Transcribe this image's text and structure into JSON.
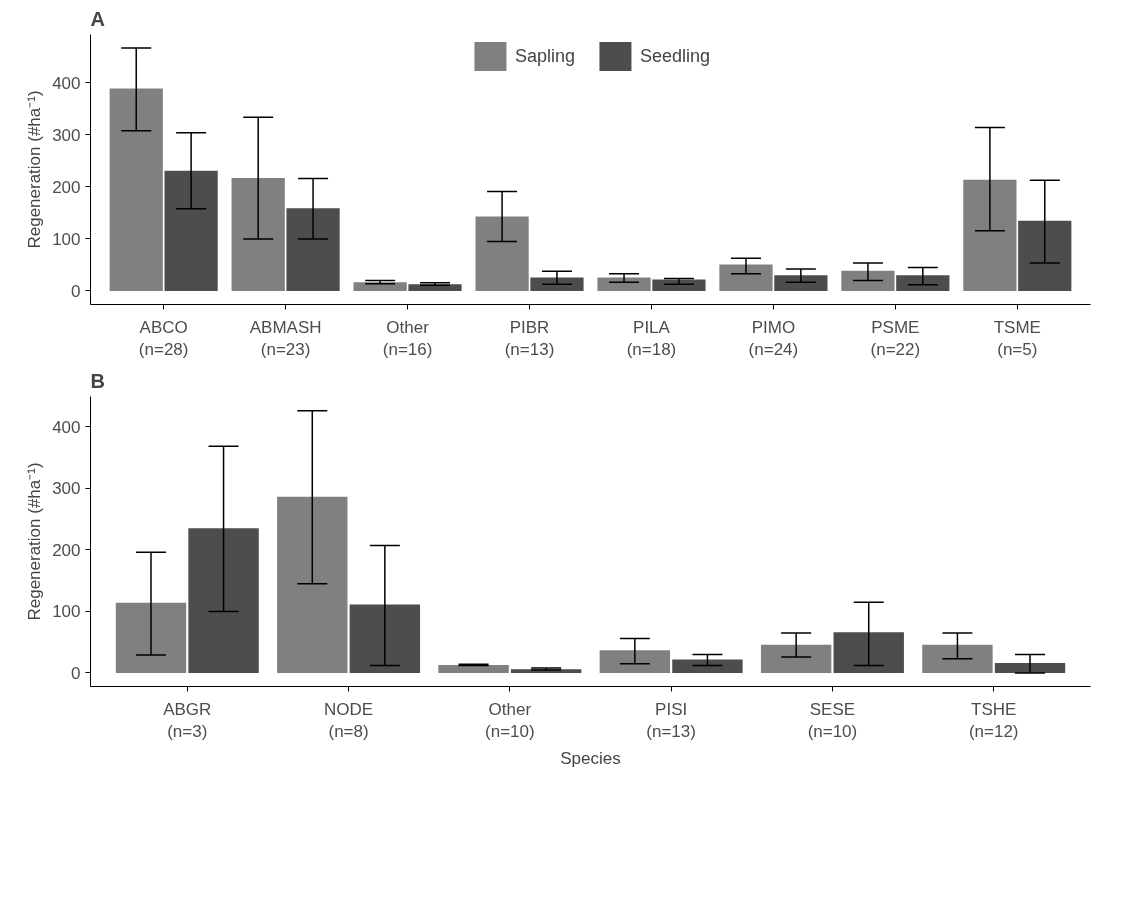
{
  "chart_data": [
    {
      "type": "bar",
      "title": "A",
      "ylabel": "Regeneration (#ha⁻¹)",
      "legend": "top",
      "grid": false,
      "categories": [
        "ABCO\n(n=28)",
        "ABMASH\n(n=23)",
        "Other\n(n=16)",
        "PIBR\n(n=13)",
        "PILA\n(n=18)",
        "PIMO\n(n=24)",
        "PSME\n(n=22)",
        "TSME\n(n=5)"
      ],
      "ylim": [
        -26,
        493
      ],
      "yticks": [
        0,
        100,
        200,
        300,
        400
      ],
      "series": [
        {
          "name": "Sapling",
          "color": "#808080",
          "values": [
            389,
            217,
            17,
            143,
            26,
            51,
            39,
            214
          ],
          "errors": [
            [
              308,
              467
            ],
            [
              100,
              334
            ],
            [
              14,
              20
            ],
            [
              95,
              191
            ],
            [
              17,
              33
            ],
            [
              33,
              63
            ],
            [
              20,
              54
            ],
            [
              116,
              314
            ]
          ]
        },
        {
          "name": "Seedling",
          "color": "#4d4d4d",
          "values": [
            231,
            159,
            13,
            26,
            22,
            30,
            30,
            135
          ],
          "errors": [
            [
              158,
              304
            ],
            [
              100,
              216
            ],
            [
              11,
              16
            ],
            [
              13,
              38
            ],
            [
              13,
              24
            ],
            [
              17,
              42
            ],
            [
              12,
              45
            ],
            [
              54,
              213
            ]
          ]
        }
      ]
    },
    {
      "type": "bar",
      "title": "B",
      "ylabel": "Regeneration (#ha⁻¹)",
      "xlabel": "Species",
      "grid": false,
      "categories": [
        "ABGR\n(n=3)",
        "NODE\n(n=8)",
        "Other\n(n=10)",
        "PISI\n(n=13)",
        "SESE\n(n=10)",
        "TSHE\n(n=12)"
      ],
      "ylim": [
        -22,
        449
      ],
      "yticks": [
        0,
        100,
        200,
        300,
        400
      ],
      "series": [
        {
          "color": "#808080",
          "values": [
            114,
            286,
            13,
            37,
            46,
            46
          ],
          "errors": [
            [
              29,
              196
            ],
            [
              145,
              426
            ],
            [
              12,
              14
            ],
            [
              15,
              56
            ],
            [
              26,
              65
            ],
            [
              23,
              65
            ]
          ]
        },
        {
          "color": "#4d4d4d",
          "values": [
            235,
            111,
            6,
            22,
            66,
            16
          ],
          "errors": [
            [
              100,
              368
            ],
            [
              12,
              207
            ],
            [
              5,
              8
            ],
            [
              12,
              30
            ],
            [
              12,
              115
            ],
            [
              0,
              30
            ]
          ]
        }
      ]
    }
  ]
}
